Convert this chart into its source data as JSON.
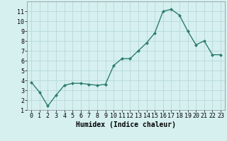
{
  "x": [
    0,
    1,
    2,
    3,
    4,
    5,
    6,
    7,
    8,
    9,
    10,
    11,
    12,
    13,
    14,
    15,
    16,
    17,
    18,
    19,
    20,
    21,
    22,
    23
  ],
  "y": [
    3.8,
    2.8,
    1.4,
    2.5,
    3.5,
    3.7,
    3.7,
    3.6,
    3.5,
    3.6,
    5.5,
    6.2,
    6.2,
    7.0,
    7.8,
    8.8,
    11.0,
    11.2,
    10.6,
    9.0,
    7.6,
    8.0,
    6.6,
    6.6
  ],
  "line_color": "#2e7d6e",
  "marker": "D",
  "marker_size": 2,
  "bg_color": "#d6f0f0",
  "grid_color": "#b8d8d8",
  "xlabel": "Humidex (Indice chaleur)",
  "ylim": [
    1,
    12
  ],
  "xlim": [
    -0.5,
    23.5
  ],
  "yticks": [
    1,
    2,
    3,
    4,
    5,
    6,
    7,
    8,
    9,
    10,
    11
  ],
  "xticks": [
    0,
    1,
    2,
    3,
    4,
    5,
    6,
    7,
    8,
    9,
    10,
    11,
    12,
    13,
    14,
    15,
    16,
    17,
    18,
    19,
    20,
    21,
    22,
    23
  ],
  "xlabel_fontsize": 7,
  "tick_fontsize": 6,
  "line_width": 1.0,
  "grid_color_minor": "#c8e0e0"
}
